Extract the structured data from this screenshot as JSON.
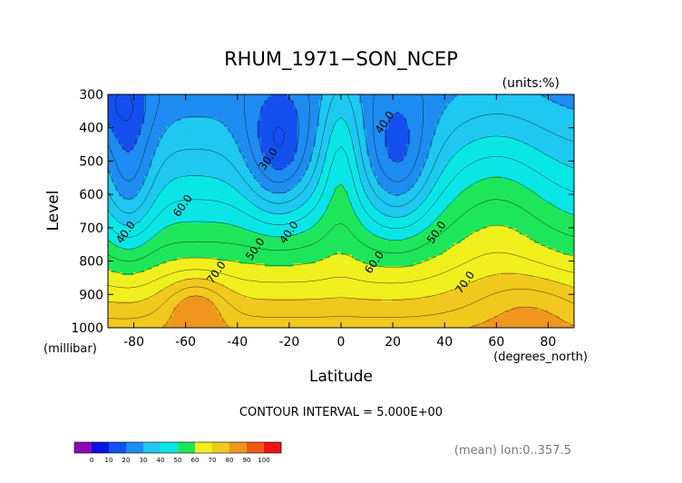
{
  "chart_data": {
    "type": "heatmap",
    "title": "RHUM_1971−SON_NCEP",
    "units_note": "(units:%)",
    "xlabel": "Latitude",
    "x_units_note": "(degrees_north)",
    "ylabel": "Level",
    "y_units_note": "(millibar)",
    "xlim": [
      -90,
      90
    ],
    "ylim": [
      1000,
      300
    ],
    "x_ticks": [
      "-80",
      "-60",
      "-40",
      "-20",
      "0",
      "20",
      "40",
      "60",
      "80"
    ],
    "x_tick_values": [
      -80,
      -60,
      -40,
      -20,
      0,
      20,
      40,
      60,
      80
    ],
    "y_ticks": [
      "300",
      "400",
      "500",
      "600",
      "700",
      "800",
      "900",
      "1000"
    ],
    "y_tick_values": [
      300,
      400,
      500,
      600,
      700,
      800,
      900,
      1000
    ],
    "contour_interval_text": "CONTOUR INTERVAL = 5.000E+00",
    "footnote": "(mean) lon:0..357.5",
    "contour_labels": [
      {
        "text": "30.0",
        "lat": -27,
        "lev": 500
      },
      {
        "text": "40.0",
        "lat": 18,
        "lev": 390
      },
      {
        "text": "40.0",
        "lat": -19,
        "lev": 720
      },
      {
        "text": "40.0",
        "lat": -82,
        "lev": 720
      },
      {
        "text": "50.0",
        "lat": -32,
        "lev": 770
      },
      {
        "text": "50.0",
        "lat": 38,
        "lev": 720
      },
      {
        "text": "60.0",
        "lat": -60,
        "lev": 640
      },
      {
        "text": "60.0",
        "lat": 14,
        "lev": 810
      },
      {
        "text": "70.0",
        "lat": -47,
        "lev": 840
      },
      {
        "text": "70.0",
        "lat": 49,
        "lev": 870
      }
    ],
    "colorbar": {
      "labels": [
        "0",
        "10",
        "20",
        "30",
        "40",
        "50",
        "60",
        "70",
        "80",
        "90",
        "100"
      ],
      "colors": [
        "#8a0ab8",
        "#0a14e0",
        "#1450f0",
        "#1e8cf0",
        "#1ec8f0",
        "#0ae6e6",
        "#1ee65a",
        "#f0f01e",
        "#f0c81e",
        "#f0961e",
        "#f05a14",
        "#f01414"
      ]
    }
  }
}
